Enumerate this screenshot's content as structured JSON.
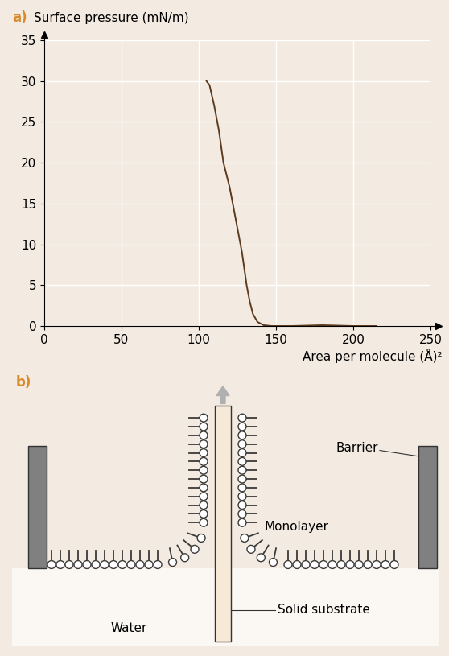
{
  "chart_data": {
    "type": "line",
    "title": "a)",
    "y_label": "Surface pressure (mN/m)",
    "x_label": "Area per molecule (Å)²",
    "x": [
      105,
      107,
      110,
      113,
      116,
      120,
      124,
      128,
      131,
      133,
      135,
      138,
      142,
      147,
      160,
      180,
      200,
      215
    ],
    "values": [
      30,
      29.5,
      27,
      24,
      20,
      17,
      13,
      9,
      5,
      3,
      1.5,
      0.5,
      0.1,
      0,
      0,
      0.1,
      0,
      0
    ],
    "color": "#5c3a1e",
    "xlim": [
      0,
      250
    ],
    "xticks": [
      0,
      50,
      100,
      150,
      200,
      250
    ],
    "ylim": [
      0,
      35
    ],
    "yticks": [
      0,
      5,
      10,
      15,
      20,
      25,
      30,
      35
    ],
    "grid": true
  },
  "diagram": {
    "panel_label": "b)",
    "labels": {
      "barrier": "Barrier",
      "monolayer": "Monolayer",
      "substrate": "Solid substrate",
      "water": "Water"
    }
  }
}
